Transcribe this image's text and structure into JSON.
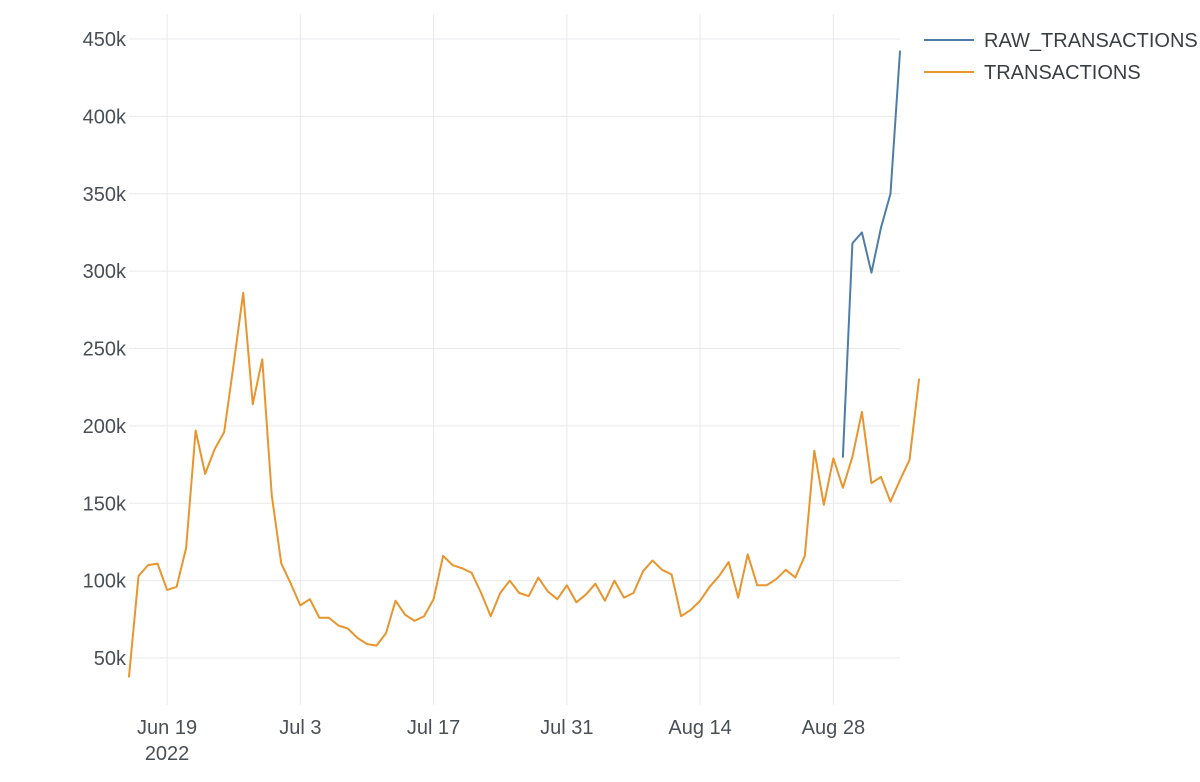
{
  "chart_data": {
    "type": "line",
    "title": "",
    "xlabel": "",
    "ylabel": "",
    "x_start": "2022-06-15",
    "x_range": [
      "2022-06-15",
      "2022-09-04"
    ],
    "ylim": [
      30000,
      460000
    ],
    "y_ticks": [
      50000,
      100000,
      150000,
      200000,
      250000,
      300000,
      350000,
      400000,
      450000
    ],
    "y_tick_labels": [
      "50k",
      "100k",
      "150k",
      "200k",
      "250k",
      "300k",
      "350k",
      "400k",
      "450k"
    ],
    "x_ticks": [
      "2022-06-19",
      "2022-07-03",
      "2022-07-17",
      "2022-07-31",
      "2022-08-14",
      "2022-08-28"
    ],
    "x_tick_labels": [
      "Jun 19",
      "Jul 3",
      "Jul 17",
      "Jul 31",
      "Aug 14",
      "Aug 28"
    ],
    "x_tick_sublabel": "2022",
    "grid": true,
    "legend_position": "top-right",
    "series": [
      {
        "name": "RAW_TRANSACTIONS",
        "color": "#4e7ea6",
        "x": [
          "2022-08-29",
          "2022-08-30",
          "2022-08-31",
          "2022-09-01",
          "2022-09-02",
          "2022-09-03",
          "2022-09-04"
        ],
        "values": [
          180000,
          318000,
          325000,
          299000,
          328000,
          350000,
          442000
        ]
      },
      {
        "name": "TRANSACTIONS",
        "color": "#e8952e",
        "values": [
          38000,
          103000,
          110000,
          111000,
          94000,
          96000,
          121000,
          197000,
          169000,
          185000,
          196000,
          240000,
          286000,
          214000,
          243000,
          155000,
          111000,
          98000,
          84000,
          88000,
          76000,
          76000,
          71000,
          69000,
          63000,
          59000,
          58000,
          66000,
          87000,
          78000,
          74000,
          77000,
          88000,
          116000,
          110000,
          108000,
          105000,
          92000,
          77000,
          92000,
          100000,
          92000,
          90000,
          102000,
          93000,
          88000,
          97000,
          86000,
          91000,
          98000,
          87000,
          100000,
          89000,
          92000,
          106000,
          113000,
          107000,
          104000,
          77000,
          81000,
          87000,
          96000,
          103000,
          112000,
          89000,
          117000,
          97000,
          97000,
          101000,
          107000,
          102000,
          116000,
          184000,
          149000,
          179000,
          160000,
          180000,
          209000,
          163000,
          167000,
          151000,
          165000,
          178000,
          230000
        ]
      }
    ]
  }
}
